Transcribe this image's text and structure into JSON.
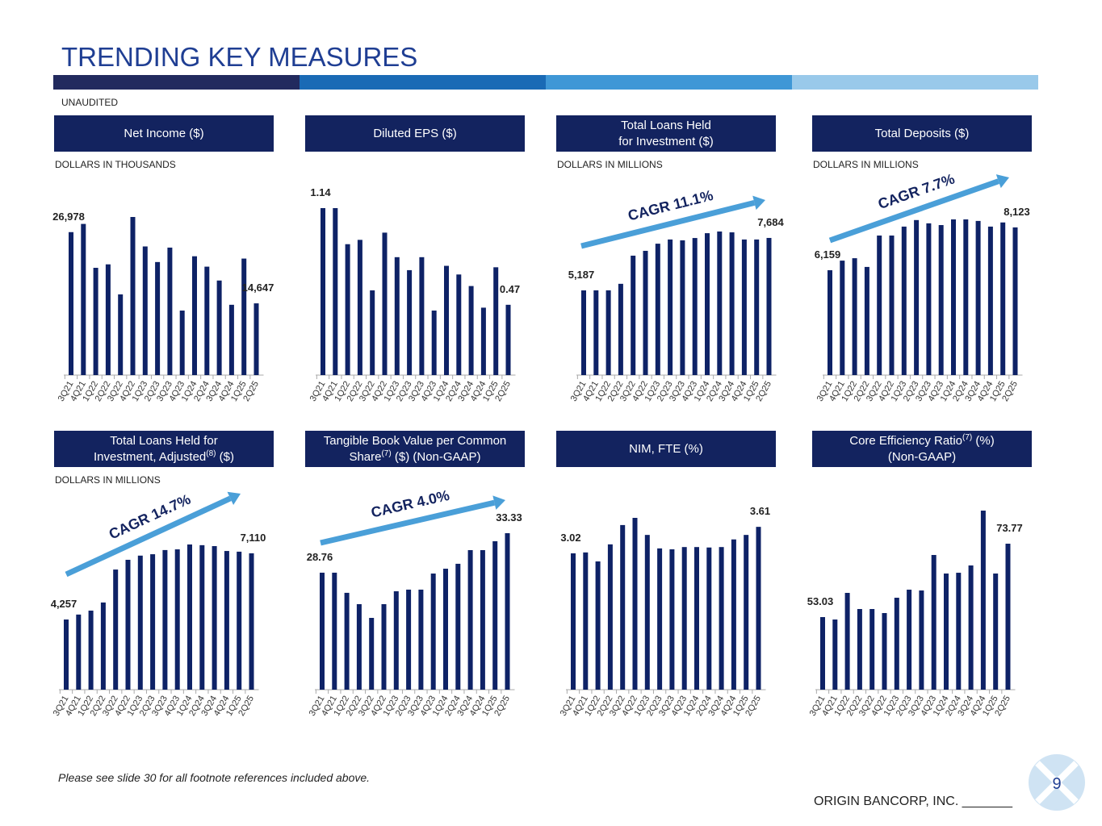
{
  "header": {
    "title": "TRENDING KEY MEASURES",
    "note": "UNAUDITED"
  },
  "chart_data": [
    {
      "type": "bar",
      "title": [
        {
          "text": "Net Income ($)"
        }
      ],
      "subtitle": "DOLLARS IN THOUSANDS",
      "color": "#0e2266",
      "categories": [
        "3Q21",
        "4Q21",
        "1Q22",
        "2Q22",
        "3Q22",
        "4Q22",
        "1Q23",
        "2Q23",
        "3Q23",
        "4Q23",
        "1Q24",
        "2Q24",
        "3Q24",
        "4Q24",
        "1Q25",
        "2Q25"
      ],
      "values": [
        26978,
        28400,
        20800,
        21400,
        16200,
        29600,
        24500,
        21800,
        24300,
        13400,
        22800,
        21000,
        18600,
        14400,
        22400,
        14647
      ],
      "value_labels": [
        "26,978",
        null,
        null,
        null,
        null,
        null,
        null,
        null,
        null,
        null,
        null,
        null,
        null,
        null,
        null,
        "14,647"
      ]
    },
    {
      "type": "bar",
      "title": [
        {
          "text": "Diluted EPS ($)"
        }
      ],
      "color": "#0e2266",
      "categories": [
        "3Q21",
        "4Q21",
        "1Q22",
        "2Q22",
        "3Q22",
        "4Q22",
        "1Q23",
        "2Q23",
        "3Q23",
        "4Q23",
        "1Q24",
        "2Q24",
        "3Q24",
        "4Q24",
        "1Q25",
        "2Q25"
      ],
      "values": [
        1.14,
        1.14,
        0.89,
        0.92,
        0.57,
        0.97,
        0.8,
        0.71,
        0.8,
        0.43,
        0.74,
        0.68,
        0.6,
        0.45,
        0.73,
        0.47
      ],
      "value_labels": [
        "1.14",
        null,
        null,
        null,
        null,
        null,
        null,
        null,
        null,
        null,
        null,
        null,
        null,
        null,
        null,
        "0.47"
      ]
    },
    {
      "type": "bar",
      "title": [
        {
          "text": "Total Loans Held\nfor Investment ($)"
        }
      ],
      "subtitle": "DOLLARS IN MILLIONS",
      "color": "#0e2266",
      "annotation": "CAGR 11.1%",
      "categories": [
        "3Q21",
        "4Q21",
        "1Q22",
        "2Q22",
        "3Q22",
        "4Q22",
        "1Q23",
        "2Q23",
        "3Q23",
        "4Q23",
        "1Q24",
        "2Q24",
        "3Q24",
        "4Q24",
        "1Q25",
        "2Q25"
      ],
      "values": [
        5187,
        5190,
        5190,
        5500,
        6840,
        7070,
        7410,
        7610,
        7570,
        7680,
        7910,
        7990,
        7950,
        7610,
        7610,
        7684
      ],
      "value_labels": [
        "5,187",
        null,
        null,
        null,
        null,
        null,
        null,
        null,
        null,
        null,
        null,
        null,
        null,
        null,
        null,
        "7,684"
      ]
    },
    {
      "type": "bar",
      "title": [
        {
          "text": "Total Deposits ($)"
        }
      ],
      "subtitle": "DOLLARS IN MILLIONS",
      "color": "#0e2266",
      "annotation": "CAGR 7.7%",
      "categories": [
        "3Q21",
        "4Q21",
        "1Q22",
        "2Q22",
        "3Q22",
        "4Q22",
        "1Q23",
        "2Q23",
        "3Q23",
        "4Q23",
        "1Q24",
        "2Q24",
        "3Q24",
        "4Q24",
        "1Q25",
        "2Q25"
      ],
      "values": [
        6159,
        6600,
        6710,
        6310,
        7750,
        7750,
        8160,
        8460,
        8310,
        8230,
        8490,
        8490,
        8420,
        8160,
        8350,
        8123
      ],
      "value_labels": [
        "6,159",
        null,
        null,
        null,
        null,
        null,
        null,
        null,
        null,
        null,
        null,
        null,
        null,
        null,
        null,
        "8,123"
      ]
    },
    {
      "type": "bar",
      "title": [
        {
          "text": "Total Loans Held for\nInvestment, Adjusted"
        },
        {
          "text": "(8)",
          "sup": true
        },
        {
          "text": " ($)"
        }
      ],
      "subtitle": "DOLLARS IN MILLIONS",
      "color": "#0e2266",
      "annotation": "CAGR 14.7%",
      "categories": [
        "3Q21",
        "4Q21",
        "1Q22",
        "2Q22",
        "3Q22",
        "4Q22",
        "1Q23",
        "2Q23",
        "3Q23",
        "4Q23",
        "1Q24",
        "2Q24",
        "3Q24",
        "4Q24",
        "1Q25",
        "2Q25"
      ],
      "values": [
        4257,
        4470,
        4640,
        4990,
        6410,
        6830,
        7010,
        7070,
        7250,
        7280,
        7490,
        7460,
        7420,
        7210,
        7180,
        7110
      ],
      "value_labels": [
        "4,257",
        null,
        null,
        null,
        null,
        null,
        null,
        null,
        null,
        null,
        null,
        null,
        null,
        null,
        null,
        "7,110"
      ]
    },
    {
      "type": "bar",
      "title": [
        {
          "text": "Tangible Book Value per Common\nShare"
        },
        {
          "text": "(7)",
          "sup": true
        },
        {
          "text": " ($) (Non-GAAP)"
        }
      ],
      "color": "#0e2266",
      "annotation": "CAGR 4.0%",
      "categories": [
        "3Q21",
        "4Q21",
        "1Q22",
        "2Q22",
        "3Q22",
        "4Q22",
        "1Q23",
        "2Q23",
        "3Q23",
        "4Q23",
        "1Q24",
        "2Q24",
        "3Q24",
        "4Q24",
        "1Q25",
        "2Q25"
      ],
      "values": [
        28.76,
        28.76,
        26.43,
        25.12,
        23.53,
        25.12,
        26.61,
        26.8,
        26.8,
        28.66,
        29.22,
        29.79,
        31.37,
        31.37,
        32.4,
        33.33
      ],
      "value_labels": [
        "28.76",
        null,
        null,
        null,
        null,
        null,
        null,
        null,
        null,
        null,
        null,
        null,
        null,
        null,
        null,
        "33.33"
      ]
    },
    {
      "type": "bar",
      "title": [
        {
          "text": "NIM, FTE (%)"
        }
      ],
      "color": "#0e2266",
      "categories": [
        "3Q21",
        "4Q21",
        "1Q22",
        "2Q22",
        "3Q22",
        "4Q22",
        "1Q23",
        "2Q23",
        "3Q23",
        "4Q23",
        "1Q24",
        "2Q24",
        "3Q24",
        "4Q24",
        "1Q25",
        "2Q25"
      ],
      "values": [
        3.02,
        3.04,
        2.84,
        3.22,
        3.65,
        3.81,
        3.43,
        3.13,
        3.11,
        3.16,
        3.16,
        3.15,
        3.16,
        3.33,
        3.43,
        3.61
      ],
      "value_labels": [
        "3.02",
        null,
        null,
        null,
        null,
        null,
        null,
        null,
        null,
        null,
        null,
        null,
        null,
        null,
        null,
        "3.61"
      ]
    },
    {
      "type": "bar",
      "title": [
        {
          "text": "Core Efficiency Ratio"
        },
        {
          "text": "(7)",
          "sup": true
        },
        {
          "text": " (%)\n(Non-GAAP)"
        }
      ],
      "color": "#0e2266",
      "categories": [
        "3Q21",
        "4Q21",
        "1Q22",
        "2Q22",
        "3Q22",
        "4Q22",
        "1Q23",
        "2Q23",
        "3Q23",
        "4Q23",
        "1Q24",
        "2Q24",
        "3Q24",
        "4Q24",
        "1Q25",
        "2Q25"
      ],
      "values": [
        53.03,
        52.35,
        59.87,
        55.31,
        55.31,
        54.17,
        58.5,
        60.78,
        60.55,
        70.58,
        65.34,
        65.56,
        67.62,
        83.12,
        65.34,
        73.77
      ],
      "value_labels": [
        "53.03",
        null,
        null,
        null,
        null,
        null,
        null,
        null,
        null,
        null,
        null,
        null,
        null,
        null,
        null,
        "73.77"
      ]
    }
  ],
  "footer": {
    "note": "Please see slide 30 for all footnote references included above.",
    "company": "ORIGIN BANCORP, INC. _______",
    "page": "9"
  }
}
